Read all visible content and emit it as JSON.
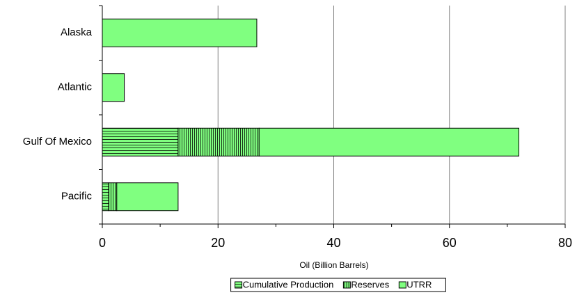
{
  "chart_data": {
    "type": "stacked-barh",
    "categories": [
      "Alaska",
      "Atlantic",
      "Gulf Of Mexico",
      "Pacific"
    ],
    "series": [
      {
        "name": "Cumulative Production",
        "color": "#80ff80",
        "pattern": "horizontal",
        "values": [
          0,
          0,
          13.1,
          1.1
        ]
      },
      {
        "name": "Reserves",
        "color": "#80ff80",
        "pattern": "vertical",
        "values": [
          0,
          0,
          14.0,
          1.4
        ]
      },
      {
        "name": "UTRR",
        "color": "#80ff80",
        "pattern": "solid",
        "values": [
          26.7,
          3.8,
          44.9,
          10.6
        ]
      }
    ],
    "xlabel": "Oil (Billion Barrels)",
    "xlim": [
      0,
      80
    ],
    "xticks": [
      0,
      20,
      40,
      60,
      80
    ],
    "xminorticks": [
      10,
      30,
      50,
      70
    ],
    "grid": true,
    "legend": "bottom"
  }
}
